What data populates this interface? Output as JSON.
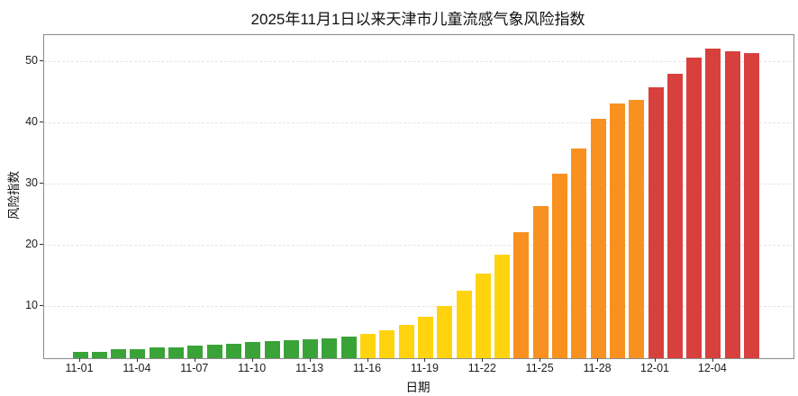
{
  "title": "2025年11月1日以来天津市儿童流感气象风险指数",
  "chart_data": {
    "type": "bar",
    "title": "2025年11月1日以来天津市儿童流感气象风险指数",
    "xlabel": "日期",
    "ylabel": "风险指数",
    "ylim": [
      1.4,
      54.2
    ],
    "yticks": [
      10,
      20,
      30,
      40,
      50
    ],
    "grid": "horizontal-dashed",
    "legend": "none",
    "xtick_labels": [
      "11-01",
      "11-04",
      "11-07",
      "11-10",
      "11-13",
      "11-16",
      "11-19",
      "11-22",
      "11-25",
      "11-28",
      "12-01",
      "12-04"
    ],
    "xtick_interval_days": 3,
    "categories": [
      "11-01",
      "11-02",
      "11-03",
      "11-04",
      "11-05",
      "11-06",
      "11-07",
      "11-08",
      "11-09",
      "11-10",
      "11-11",
      "11-12",
      "11-13",
      "11-14",
      "11-15",
      "11-16",
      "11-17",
      "11-18",
      "11-19",
      "11-20",
      "11-21",
      "11-22",
      "11-23",
      "11-24",
      "11-25",
      "11-26",
      "11-27",
      "11-28",
      "11-29",
      "11-30",
      "12-01",
      "12-02",
      "12-03",
      "12-04",
      "12-05",
      "12-06"
    ],
    "values": [
      2.5,
      2.5,
      2.9,
      2.9,
      3.2,
      3.2,
      3.5,
      3.6,
      3.8,
      4.0,
      4.2,
      4.3,
      4.5,
      4.7,
      4.9,
      5.3,
      5.9,
      6.9,
      8.2,
      9.9,
      12.4,
      15.2,
      18.3,
      22.0,
      26.3,
      31.5,
      35.7,
      40.5,
      43.0,
      43.6,
      45.6,
      47.9,
      50.5,
      52.0,
      51.5,
      51.2
    ],
    "levels": [
      "green",
      "green",
      "green",
      "green",
      "green",
      "green",
      "green",
      "green",
      "green",
      "green",
      "green",
      "green",
      "green",
      "green",
      "green",
      "yellow",
      "yellow",
      "yellow",
      "yellow",
      "yellow",
      "yellow",
      "yellow",
      "yellow",
      "orange",
      "orange",
      "orange",
      "orange",
      "orange",
      "orange",
      "orange",
      "red",
      "red",
      "red",
      "red",
      "red",
      "red"
    ],
    "level_colors": {
      "green": "#3aa338",
      "yellow": "#ffd40e",
      "orange": "#f8911f",
      "red": "#d8403e"
    }
  }
}
